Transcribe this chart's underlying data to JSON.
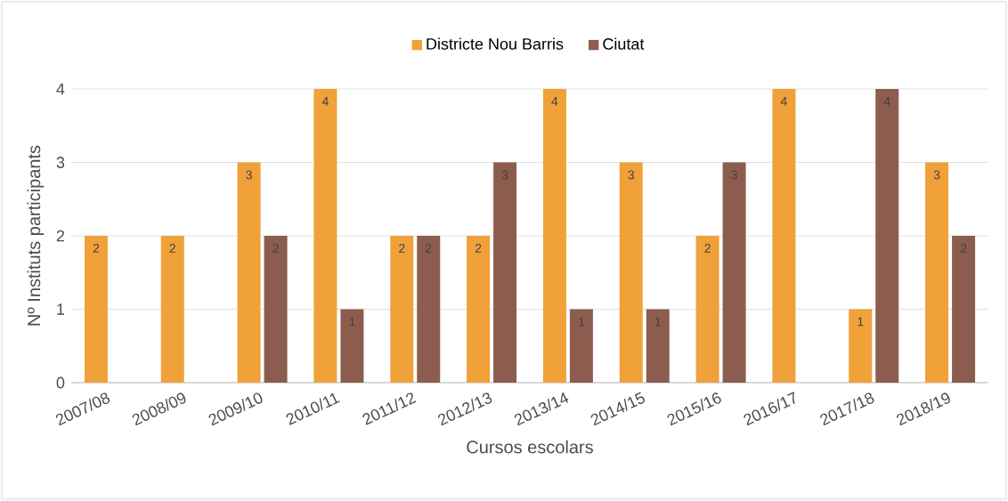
{
  "chart_data": {
    "type": "bar",
    "xlabel": "Cursos escolars",
    "ylabel": "Nº Instituts participants",
    "categories": [
      "2007/08",
      "2008/09",
      "2009/10",
      "2010/11",
      "2011/12",
      "2012/13",
      "2013/14",
      "2014/15",
      "2015/16",
      "2016/17",
      "2017/18",
      "2018/19"
    ],
    "series": [
      {
        "name": "Districte Nou Barris",
        "color": "#f0a13a",
        "values": [
          2,
          2,
          3,
          4,
          2,
          2,
          4,
          3,
          2,
          4,
          1,
          3
        ]
      },
      {
        "name": "Ciutat",
        "color": "#8c5d4f",
        "values": [
          null,
          null,
          2,
          1,
          2,
          3,
          1,
          1,
          3,
          null,
          4,
          2
        ]
      }
    ],
    "ylim": [
      0,
      4
    ],
    "yticks": [
      0,
      1,
      2,
      3,
      4
    ],
    "grid": "y",
    "legend": "top",
    "data_labels": true
  }
}
